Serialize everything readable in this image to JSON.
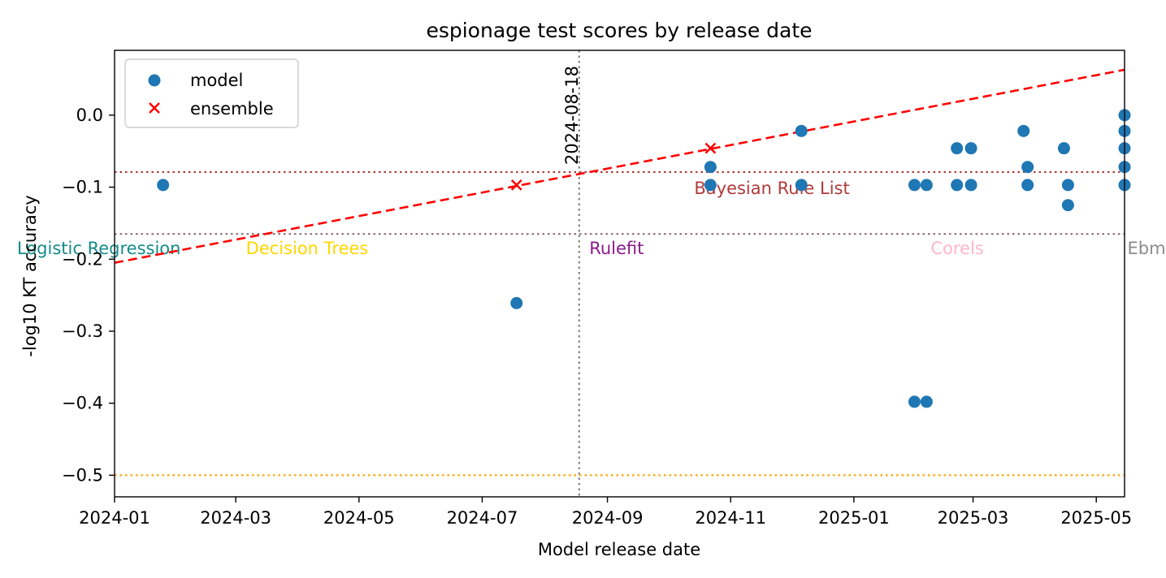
{
  "chart_data": {
    "type": "scatter",
    "title": "espionage test scores by release date",
    "xlabel": "Model release date",
    "ylabel": "-log10 KT accuracy",
    "xlim": [
      "2024-01-01",
      "2025-05-15"
    ],
    "ylim": [
      -0.53,
      0.09
    ],
    "x_ticks": [
      "2024-01-01",
      "2024-03-01",
      "2024-05-01",
      "2024-07-01",
      "2024-09-01",
      "2024-11-01",
      "2025-01-01",
      "2025-03-01",
      "2025-05-01"
    ],
    "x_tick_labels": [
      "2024-01",
      "2024-03",
      "2024-05",
      "2024-07",
      "2024-09",
      "2024-11",
      "2025-01",
      "2025-03",
      "2025-05"
    ],
    "y_ticks": [
      -0.5,
      -0.4,
      -0.3,
      -0.2,
      -0.1,
      0.0
    ],
    "y_tick_labels": [
      "−0.5",
      "−0.4",
      "−0.3",
      "−0.2",
      "−0.1",
      "0.0"
    ],
    "grid": false,
    "legend_position": "top-left",
    "series": [
      {
        "name": "model",
        "marker": "circle",
        "color": "#1f77b4",
        "points": [
          {
            "x": "2024-01-25",
            "y": -0.097
          },
          {
            "x": "2024-07-18",
            "y": -0.261
          },
          {
            "x": "2024-10-22",
            "y": -0.072
          },
          {
            "x": "2024-10-22",
            "y": -0.097
          },
          {
            "x": "2024-12-06",
            "y": -0.022
          },
          {
            "x": "2024-12-06",
            "y": -0.097
          },
          {
            "x": "2025-01-31",
            "y": -0.097
          },
          {
            "x": "2025-01-31",
            "y": -0.398
          },
          {
            "x": "2025-02-06",
            "y": -0.097
          },
          {
            "x": "2025-02-06",
            "y": -0.398
          },
          {
            "x": "2025-02-21",
            "y": -0.046
          },
          {
            "x": "2025-02-21",
            "y": -0.097
          },
          {
            "x": "2025-02-28",
            "y": -0.046
          },
          {
            "x": "2025-02-28",
            "y": -0.097
          },
          {
            "x": "2025-03-26",
            "y": -0.022
          },
          {
            "x": "2025-03-28",
            "y": -0.072
          },
          {
            "x": "2025-03-28",
            "y": -0.097
          },
          {
            "x": "2025-04-15",
            "y": -0.046
          },
          {
            "x": "2025-04-17",
            "y": -0.097
          },
          {
            "x": "2025-04-17",
            "y": -0.125
          },
          {
            "x": "2025-05-15",
            "y": 0.0
          },
          {
            "x": "2025-05-15",
            "y": -0.022
          },
          {
            "x": "2025-05-15",
            "y": -0.046
          },
          {
            "x": "2025-05-15",
            "y": -0.072
          },
          {
            "x": "2025-05-15",
            "y": -0.097
          }
        ]
      },
      {
        "name": "ensemble",
        "marker": "x",
        "color": "#ff0000",
        "points": [
          {
            "x": "2024-07-18",
            "y": -0.097
          },
          {
            "x": "2024-10-22",
            "y": -0.046
          }
        ]
      }
    ],
    "trend_line": {
      "style": "dashed",
      "color": "#ff0000",
      "from": {
        "x": "2024-01-01",
        "y": -0.205
      },
      "to": {
        "x": "2025-05-15",
        "y": 0.063
      }
    },
    "vertical_line": {
      "x": "2024-08-18",
      "label": "2024-08-18",
      "color": "#808080",
      "style": "dotted"
    },
    "reference_lines": [
      {
        "y": -0.079,
        "color": "#b03a3a",
        "label": "Bayesian Rule List",
        "label_x": "2024-10-22",
        "label_color": "#b03a3a"
      },
      {
        "y": -0.165,
        "color": "#8c6d6d",
        "style": "dotted"
      },
      {
        "y": -0.5,
        "color": "#ffa500",
        "style": "dotted"
      }
    ],
    "annotations": [
      {
        "text": "Logistic Regression",
        "x": "2024-01-01",
        "y": -0.185,
        "color": "#168b8b"
      },
      {
        "text": "Decision Trees",
        "x": "2024-03-06",
        "y": -0.185,
        "color": "#ffd700"
      },
      {
        "text": "Rulefit",
        "x": "2024-08-23",
        "y": -0.185,
        "color": "#8b1a8b"
      },
      {
        "text": "Corels",
        "x": "2025-02-08",
        "y": -0.185,
        "color": "#ffb6c8"
      },
      {
        "text": "Ebm",
        "x": "2025-05-15",
        "y": -0.185,
        "color": "#8c8c8c"
      }
    ]
  }
}
